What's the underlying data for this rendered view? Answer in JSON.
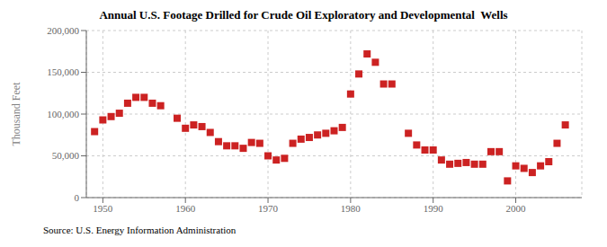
{
  "chart_data": {
    "type": "scatter",
    "title": "Annual U.S. Footage Drilled for Crude Oil Exploratory and Developmental  Wells",
    "ylabel": "Thousand Feet",
    "annotations": [
      "Source: U.S. Energy Information Administration"
    ],
    "x": [
      1949,
      1950,
      1951,
      1952,
      1953,
      1954,
      1955,
      1956,
      1957,
      1959,
      1960,
      1961,
      1962,
      1963,
      1964,
      1965,
      1966,
      1967,
      1968,
      1969,
      1970,
      1971,
      1972,
      1973,
      1974,
      1975,
      1976,
      1977,
      1978,
      1979,
      1980,
      1981,
      1982,
      1983,
      1984,
      1985,
      1987,
      1988,
      1989,
      1990,
      1991,
      1992,
      1993,
      1994,
      1995,
      1996,
      1997,
      1998,
      1999,
      2000,
      2001,
      2002,
      2003,
      2004,
      2005,
      2006
    ],
    "values": [
      79000,
      93000,
      97000,
      101000,
      113000,
      120000,
      120000,
      113000,
      110000,
      95000,
      83000,
      87000,
      85000,
      78000,
      67000,
      62000,
      62000,
      59000,
      66000,
      65000,
      50000,
      45000,
      47000,
      65000,
      70000,
      72000,
      75000,
      77000,
      80000,
      84000,
      124000,
      148000,
      172000,
      162000,
      136000,
      136000,
      77000,
      63000,
      57000,
      57000,
      45000,
      40000,
      41000,
      42000,
      40000,
      40000,
      55000,
      55000,
      20000,
      38000,
      35000,
      30000,
      38000,
      43000,
      65000,
      87000
    ],
    "color": "#cc2222",
    "marker": "square",
    "xlim": [
      1948,
      2008
    ],
    "xticks": [
      1950,
      1960,
      1970,
      1980,
      1990,
      2000
    ],
    "ylim": [
      0,
      200000
    ],
    "yticks": [
      0,
      {
        "value": 50000,
        "label": "50,000"
      },
      {
        "value": 100000,
        "label": "100,000"
      },
      {
        "value": 150000,
        "label": "150,000"
      },
      {
        "value": 200000,
        "label": "200,000"
      }
    ],
    "grid": true
  }
}
